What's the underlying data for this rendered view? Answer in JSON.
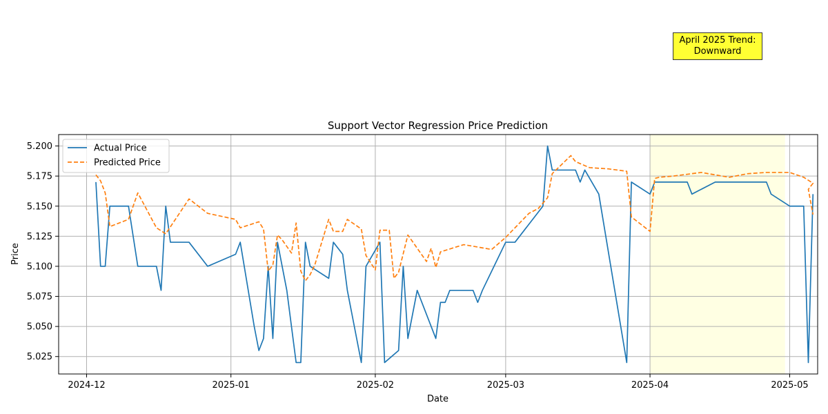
{
  "chart_data": {
    "type": "line",
    "title": "Support Vector Regression Price Prediction",
    "xlabel": "Date",
    "ylabel": "Price",
    "xlim": [
      "2024-11-25",
      "2025-05-07"
    ],
    "ylim": [
      5.0105,
      5.2095
    ],
    "x_ticks": [
      "2024-12-01",
      "2025-01-01",
      "2025-02-01",
      "2025-03-01",
      "2025-04-01",
      "2025-05-01"
    ],
    "x_tick_labels": [
      "2024-12",
      "2025-01",
      "2025-02",
      "2025-03",
      "2025-04",
      "2025-05"
    ],
    "y_ticks": [
      5.025,
      5.05,
      5.075,
      5.1,
      5.125,
      5.15,
      5.175,
      5.2
    ],
    "y_tick_labels": [
      "5.025",
      "5.050",
      "5.075",
      "5.100",
      "5.125",
      "5.150",
      "5.175",
      "5.200"
    ],
    "grid": true,
    "legend": "upper left",
    "highlight_range": [
      "2025-04-01",
      "2025-04-30"
    ],
    "highlight_color": "#ffffe0",
    "annotation": {
      "lines": [
        "April 2025 Trend:",
        "Downward"
      ],
      "background": "#ffff33"
    },
    "series": [
      {
        "name": "Actual Price",
        "color": "#1f77b4",
        "style": "solid",
        "points": [
          [
            "2024-12-03",
            5.17
          ],
          [
            "2024-12-04",
            5.1
          ],
          [
            "2024-12-05",
            5.1
          ],
          [
            "2024-12-06",
            5.15
          ],
          [
            "2024-12-10",
            5.15
          ],
          [
            "2024-12-12",
            5.1
          ],
          [
            "2024-12-16",
            5.1
          ],
          [
            "2024-12-17",
            5.08
          ],
          [
            "2024-12-18",
            5.15
          ],
          [
            "2024-12-19",
            5.12
          ],
          [
            "2024-12-23",
            5.12
          ],
          [
            "2024-12-27",
            5.1
          ],
          [
            "2025-01-02",
            5.11
          ],
          [
            "2025-01-03",
            5.12
          ],
          [
            "2025-01-06",
            5.05
          ],
          [
            "2025-01-07",
            5.03
          ],
          [
            "2025-01-08",
            5.04
          ],
          [
            "2025-01-09",
            5.1
          ],
          [
            "2025-01-10",
            5.04
          ],
          [
            "2025-01-11",
            5.12
          ],
          [
            "2025-01-13",
            5.08
          ],
          [
            "2025-01-14",
            5.05
          ],
          [
            "2025-01-15",
            5.02
          ],
          [
            "2025-01-16",
            5.02
          ],
          [
            "2025-01-17",
            5.12
          ],
          [
            "2025-01-18",
            5.1
          ],
          [
            "2025-01-22",
            5.09
          ],
          [
            "2025-01-23",
            5.12
          ],
          [
            "2025-01-25",
            5.11
          ],
          [
            "2025-01-26",
            5.08
          ],
          [
            "2025-01-29",
            5.02
          ],
          [
            "2025-01-30",
            5.1
          ],
          [
            "2025-02-02",
            5.12
          ],
          [
            "2025-02-03",
            5.02
          ],
          [
            "2025-02-06",
            5.03
          ],
          [
            "2025-02-07",
            5.1
          ],
          [
            "2025-02-08",
            5.04
          ],
          [
            "2025-02-10",
            5.08
          ],
          [
            "2025-02-14",
            5.04
          ],
          [
            "2025-02-15",
            5.07
          ],
          [
            "2025-02-16",
            5.07
          ],
          [
            "2025-02-17",
            5.08
          ],
          [
            "2025-02-22",
            5.08
          ],
          [
            "2025-02-23",
            5.07
          ],
          [
            "2025-02-24",
            5.08
          ],
          [
            "2025-03-01",
            5.12
          ],
          [
            "2025-03-03",
            5.12
          ],
          [
            "2025-03-09",
            5.15
          ],
          [
            "2025-03-10",
            5.2
          ],
          [
            "2025-03-11",
            5.18
          ],
          [
            "2025-03-16",
            5.18
          ],
          [
            "2025-03-17",
            5.17
          ],
          [
            "2025-03-18",
            5.18
          ],
          [
            "2025-03-21",
            5.16
          ],
          [
            "2025-03-27",
            5.02
          ],
          [
            "2025-03-28",
            5.17
          ],
          [
            "2025-04-01",
            5.16
          ],
          [
            "2025-04-02",
            5.17
          ],
          [
            "2025-04-09",
            5.17
          ],
          [
            "2025-04-10",
            5.16
          ],
          [
            "2025-04-15",
            5.17
          ],
          [
            "2025-04-26",
            5.17
          ],
          [
            "2025-04-27",
            5.16
          ],
          [
            "2025-05-01",
            5.15
          ],
          [
            "2025-05-04",
            5.15
          ],
          [
            "2025-05-05",
            5.02
          ],
          [
            "2025-05-06",
            5.16
          ]
        ]
      },
      {
        "name": "Predicted Price",
        "color": "#ff7f0e",
        "style": "dashed",
        "points": [
          [
            "2024-12-03",
            5.176
          ],
          [
            "2024-12-04",
            5.171
          ],
          [
            "2024-12-05",
            5.161
          ],
          [
            "2024-12-06",
            5.133
          ],
          [
            "2024-12-10",
            5.139
          ],
          [
            "2024-12-12",
            5.161
          ],
          [
            "2024-12-16",
            5.132
          ],
          [
            "2024-12-18",
            5.127
          ],
          [
            "2024-12-23",
            5.156
          ],
          [
            "2024-12-27",
            5.144
          ],
          [
            "2025-01-02",
            5.139
          ],
          [
            "2025-01-03",
            5.132
          ],
          [
            "2025-01-07",
            5.137
          ],
          [
            "2025-01-08",
            5.131
          ],
          [
            "2025-01-09",
            5.096
          ],
          [
            "2025-01-10",
            5.101
          ],
          [
            "2025-01-11",
            5.126
          ],
          [
            "2025-01-12",
            5.122
          ],
          [
            "2025-01-14",
            5.111
          ],
          [
            "2025-01-15",
            5.136
          ],
          [
            "2025-01-16",
            5.096
          ],
          [
            "2025-01-17",
            5.088
          ],
          [
            "2025-01-18",
            5.093
          ],
          [
            "2025-01-19",
            5.101
          ],
          [
            "2025-01-22",
            5.139
          ],
          [
            "2025-01-23",
            5.129
          ],
          [
            "2025-01-25",
            5.129
          ],
          [
            "2025-01-26",
            5.139
          ],
          [
            "2025-01-29",
            5.131
          ],
          [
            "2025-01-30",
            5.109
          ],
          [
            "2025-02-01",
            5.097
          ],
          [
            "2025-02-02",
            5.13
          ],
          [
            "2025-02-04",
            5.13
          ],
          [
            "2025-02-05",
            5.09
          ],
          [
            "2025-02-06",
            5.095
          ],
          [
            "2025-02-08",
            5.126
          ],
          [
            "2025-02-12",
            5.104
          ],
          [
            "2025-02-13",
            5.115
          ],
          [
            "2025-02-14",
            5.099
          ],
          [
            "2025-02-15",
            5.112
          ],
          [
            "2025-02-20",
            5.118
          ],
          [
            "2025-02-26",
            5.114
          ],
          [
            "2025-03-01",
            5.124
          ],
          [
            "2025-03-03",
            5.132
          ],
          [
            "2025-03-06",
            5.144
          ],
          [
            "2025-03-08",
            5.148
          ],
          [
            "2025-03-10",
            5.157
          ],
          [
            "2025-03-11",
            5.177
          ],
          [
            "2025-03-15",
            5.192
          ],
          [
            "2025-03-16",
            5.187
          ],
          [
            "2025-03-19",
            5.182
          ],
          [
            "2025-03-23",
            5.181
          ],
          [
            "2025-03-27",
            5.179
          ],
          [
            "2025-03-28",
            5.141
          ],
          [
            "2025-04-01",
            5.129
          ],
          [
            "2025-04-02",
            5.173
          ],
          [
            "2025-04-03",
            5.174
          ],
          [
            "2025-04-06",
            5.175
          ],
          [
            "2025-04-12",
            5.178
          ],
          [
            "2025-04-18",
            5.174
          ],
          [
            "2025-04-22",
            5.177
          ],
          [
            "2025-04-26",
            5.178
          ],
          [
            "2025-04-30",
            5.178
          ],
          [
            "2025-05-01",
            5.178
          ],
          [
            "2025-05-04",
            5.174
          ],
          [
            "2025-05-06",
            5.169
          ],
          [
            "2025-05-05",
            5.164
          ],
          [
            "2025-05-06",
            5.143
          ]
        ]
      }
    ]
  }
}
